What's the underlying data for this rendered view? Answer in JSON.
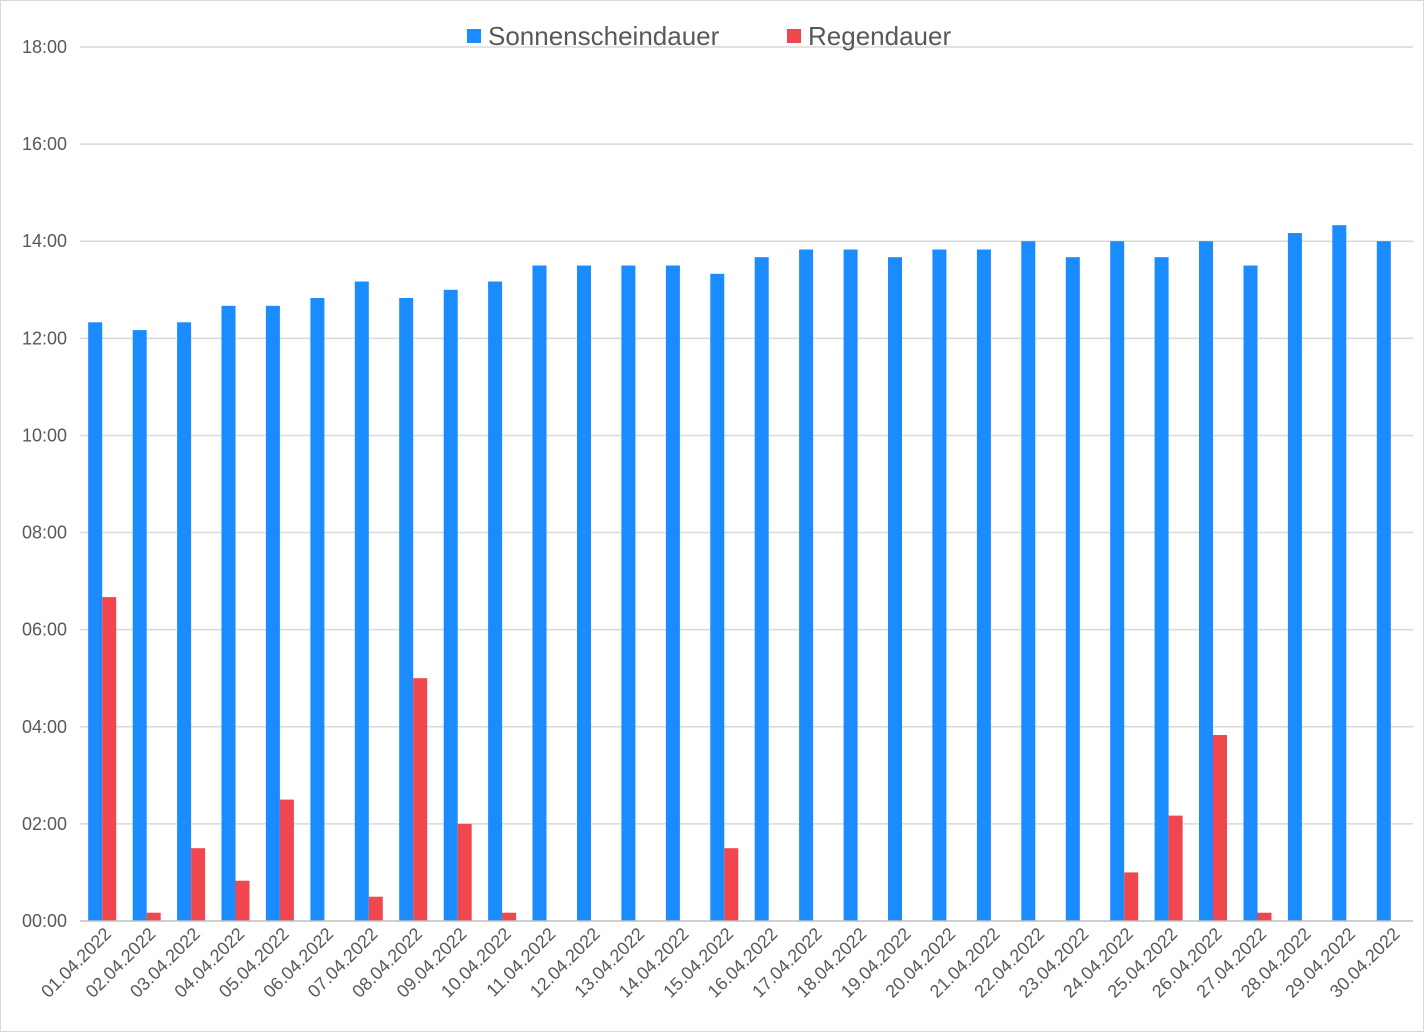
{
  "chart_data": {
    "type": "bar",
    "title": "",
    "xlabel": "",
    "ylabel": "",
    "y_unit": "hours (hh:mm)",
    "ylim": [
      0,
      18
    ],
    "y_ticks": [
      "00:00",
      "02:00",
      "04:00",
      "06:00",
      "08:00",
      "10:00",
      "12:00",
      "14:00",
      "16:00",
      "18:00"
    ],
    "grid": "horizontal",
    "legend_position": "top-center",
    "categories": [
      "01.04.2022",
      "02.04.2022",
      "03.04.2022",
      "04.04.2022",
      "05.04.2022",
      "06.04.2022",
      "07.04.2022",
      "08.04.2022",
      "09.04.2022",
      "10.04.2022",
      "11.04.2022",
      "12.04.2022",
      "13.04.2022",
      "14.04.2022",
      "15.04.2022",
      "16.04.2022",
      "17.04.2022",
      "18.04.2022",
      "19.04.2022",
      "20.04.2022",
      "21.04.2022",
      "22.04.2022",
      "23.04.2022",
      "24.04.2022",
      "25.04.2022",
      "26.04.2022",
      "27.04.2022",
      "28.04.2022",
      "29.04.2022",
      "30.04.2022"
    ],
    "series": [
      {
        "name": "Sonnenscheindauer",
        "color": "#1a8cff",
        "values": [
          12.33,
          12.17,
          12.33,
          12.67,
          12.67,
          12.83,
          13.17,
          12.83,
          13.0,
          13.17,
          13.5,
          13.5,
          13.5,
          13.5,
          13.33,
          13.67,
          13.83,
          13.83,
          13.67,
          13.83,
          13.83,
          14.0,
          13.67,
          14.0,
          13.67,
          14.0,
          13.5,
          14.17,
          14.33,
          14.0
        ]
      },
      {
        "name": "Regendauer",
        "color": "#f0474f",
        "values": [
          6.67,
          0.17,
          1.5,
          0.83,
          2.5,
          0,
          0.5,
          5.0,
          2.0,
          0.17,
          0,
          0,
          0,
          0,
          1.5,
          0,
          0,
          0,
          0,
          0,
          0,
          0,
          0,
          1.0,
          2.17,
          3.83,
          0.17,
          0,
          0,
          0
        ]
      }
    ]
  }
}
